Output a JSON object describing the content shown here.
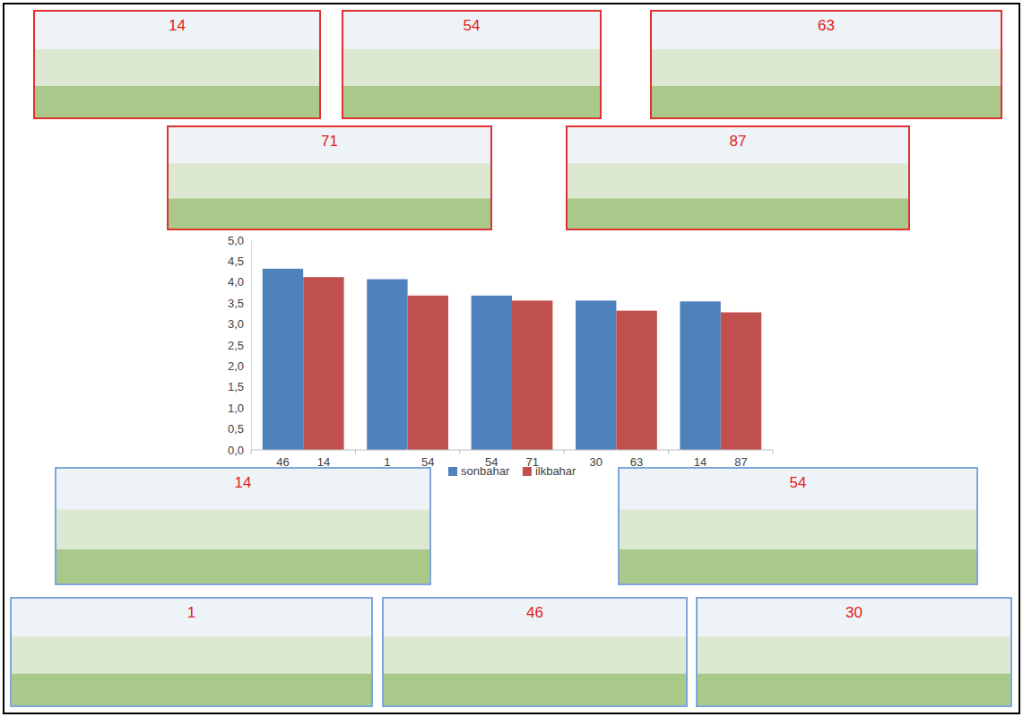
{
  "chart_data": {
    "type": "bar",
    "categories": [
      [
        "46",
        "14"
      ],
      [
        "1",
        "54"
      ],
      [
        "54",
        "71"
      ],
      [
        "30",
        "63"
      ],
      [
        "14",
        "87"
      ]
    ],
    "series": [
      {
        "name": "sonbahar",
        "color": "#4f81bd",
        "values": [
          4.32,
          4.07,
          3.68,
          3.56,
          3.54
        ]
      },
      {
        "name": "ilkbahar",
        "color": "#c0504d",
        "values": [
          4.12,
          3.68,
          3.56,
          3.32,
          3.28
        ]
      }
    ],
    "ylim": [
      0,
      5
    ],
    "yticks": [
      {
        "value": 0,
        "label": "0,0"
      },
      {
        "value": 0.5,
        "label": "0,5"
      },
      {
        "value": 1,
        "label": "1,0"
      },
      {
        "value": 1.5,
        "label": "1,5"
      },
      {
        "value": 2,
        "label": "2,0"
      },
      {
        "value": 2.5,
        "label": "2,5"
      },
      {
        "value": 3,
        "label": "3,0"
      },
      {
        "value": 3.5,
        "label": "3,5"
      },
      {
        "value": 4,
        "label": "4,0"
      },
      {
        "value": 4.5,
        "label": "4,5"
      },
      {
        "value": 5,
        "label": "5,0"
      }
    ],
    "grid": false,
    "legend": "bottom"
  },
  "photos": {
    "top": [
      {
        "label": "14"
      },
      {
        "label": "54"
      },
      {
        "label": "63"
      },
      {
        "label": "71"
      },
      {
        "label": "87"
      }
    ],
    "bottom": [
      {
        "label": "14"
      },
      {
        "label": "54"
      },
      {
        "label": "1"
      },
      {
        "label": "46"
      },
      {
        "label": "30"
      }
    ]
  }
}
